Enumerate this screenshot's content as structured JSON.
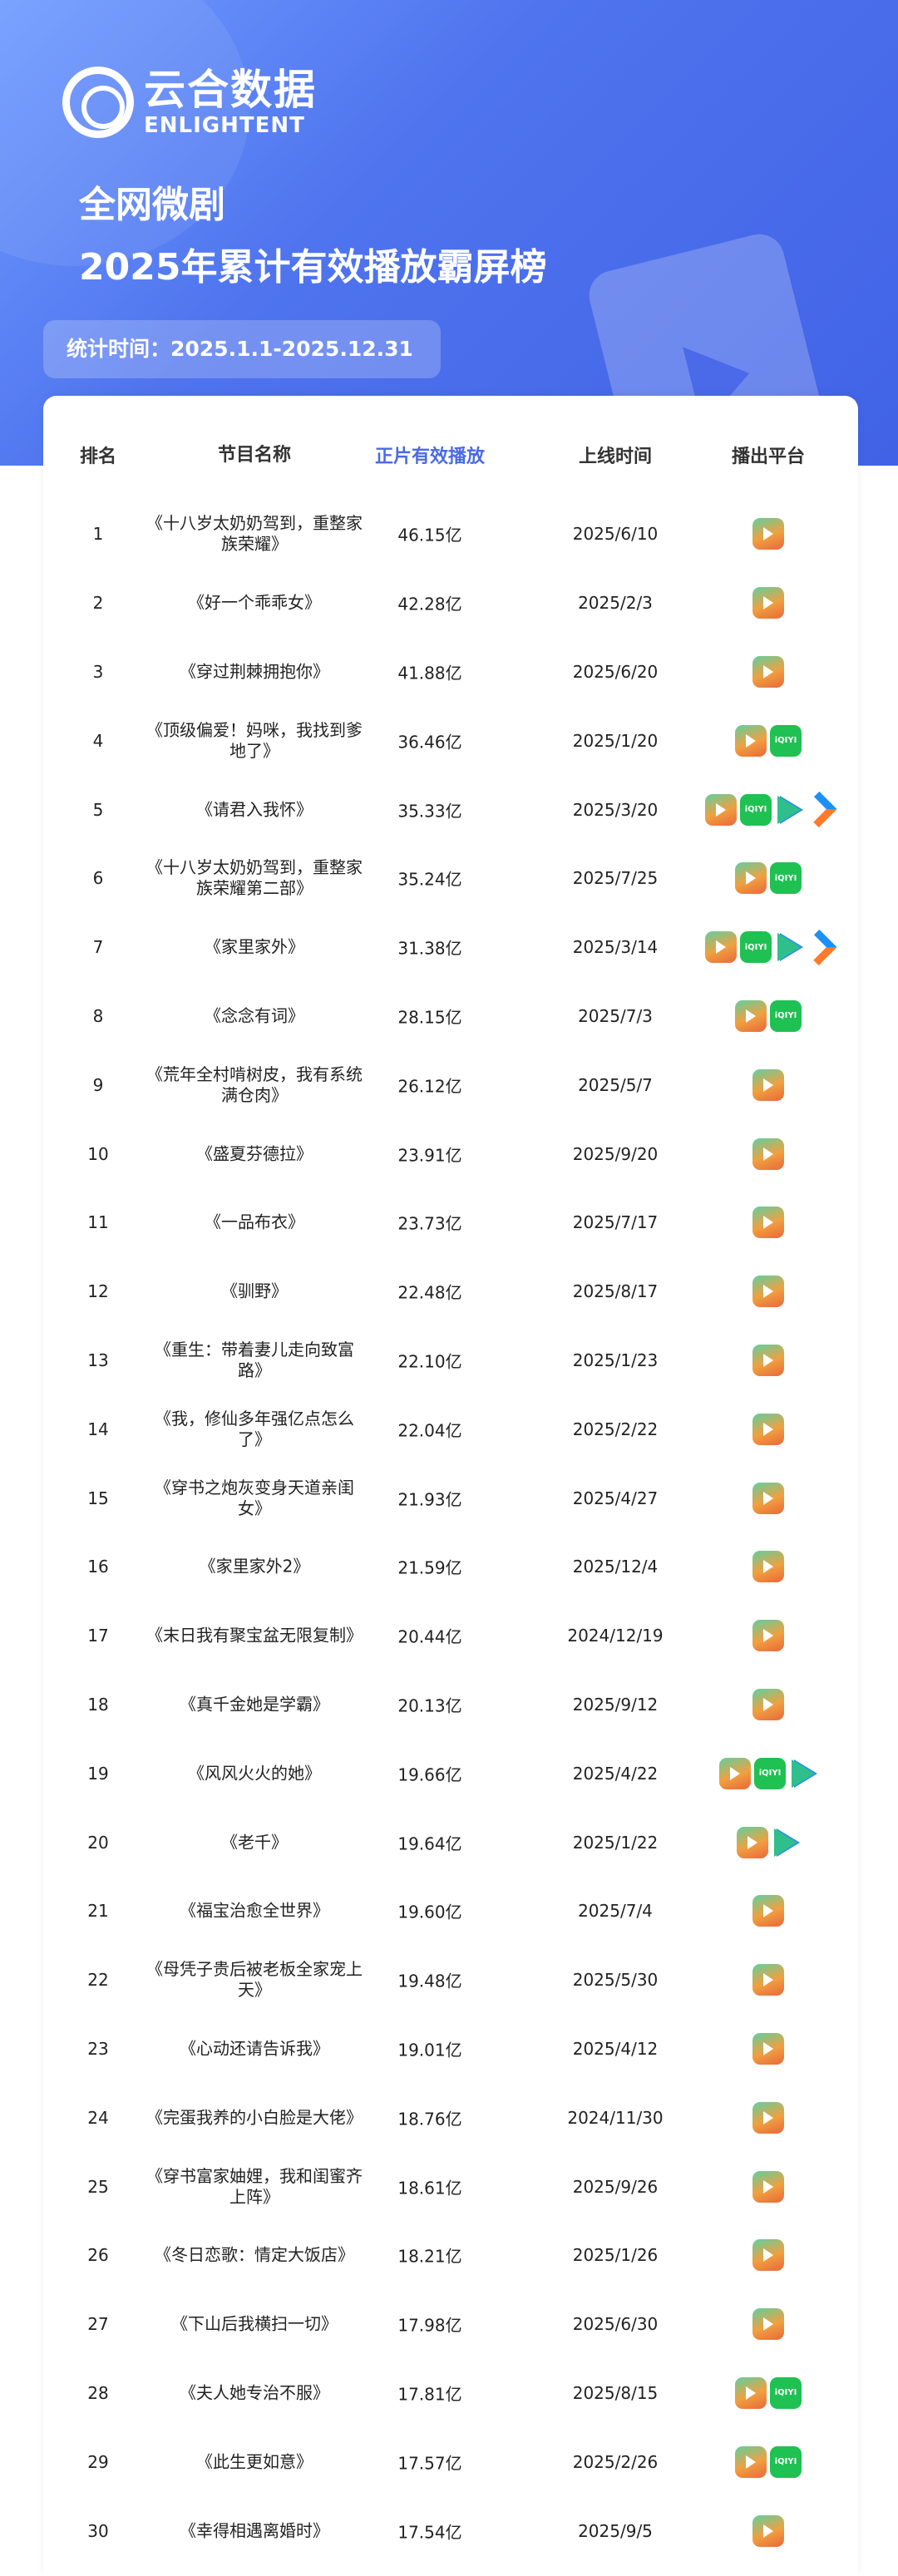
{
  "brand": {
    "name_cn": "云合数据",
    "name_en": "ENLIGHTENT"
  },
  "title": {
    "line1": "全网微剧",
    "line2": "2025年累计有效播放霸屏榜"
  },
  "period": "统计时间：2025.1.1-2025.12.31",
  "colors": {
    "accent": "#4a6ae6",
    "hero": "#4f74ee"
  },
  "table": {
    "headers": [
      "排名",
      "节目名称",
      "正片有效播放",
      "上线时间",
      "播出平台"
    ],
    "rows": [
      {
        "rank": "1",
        "name": "《十八岁太奶奶驾到，重整家族荣耀》",
        "plays": "46.15亿",
        "date": "2025/6/10",
        "platforms": [
          "hongguo"
        ]
      },
      {
        "rank": "2",
        "name": "《好一个乖乖女》",
        "plays": "42.28亿",
        "date": "2025/2/3",
        "platforms": [
          "hongguo"
        ]
      },
      {
        "rank": "3",
        "name": "《穿过荆棘拥抱你》",
        "plays": "41.88亿",
        "date": "2025/6/20",
        "platforms": [
          "hongguo"
        ]
      },
      {
        "rank": "4",
        "name": "《顶级偏爱！妈咪，我找到爹地了》",
        "plays": "36.46亿",
        "date": "2025/1/20",
        "platforms": [
          "hongguo",
          "iqiyi"
        ]
      },
      {
        "rank": "5",
        "name": "《请君入我怀》",
        "plays": "35.33亿",
        "date": "2025/3/20",
        "platforms": [
          "hongguo",
          "iqiyi",
          "tencent",
          "youku"
        ]
      },
      {
        "rank": "6",
        "name": "《十八岁太奶奶驾到，重整家族荣耀第二部》",
        "plays": "35.24亿",
        "date": "2025/7/25",
        "platforms": [
          "hongguo",
          "iqiyi"
        ]
      },
      {
        "rank": "7",
        "name": "《家里家外》",
        "plays": "31.38亿",
        "date": "2025/3/14",
        "platforms": [
          "hongguo",
          "iqiyi",
          "tencent",
          "youku"
        ]
      },
      {
        "rank": "8",
        "name": "《念念有词》",
        "plays": "28.15亿",
        "date": "2025/7/3",
        "platforms": [
          "hongguo",
          "iqiyi"
        ]
      },
      {
        "rank": "9",
        "name": "《荒年全村啃树皮，我有系统满仓肉》",
        "plays": "26.12亿",
        "date": "2025/5/7",
        "platforms": [
          "hongguo"
        ]
      },
      {
        "rank": "10",
        "name": "《盛夏芬德拉》",
        "plays": "23.91亿",
        "date": "2025/9/20",
        "platforms": [
          "hongguo"
        ]
      },
      {
        "rank": "11",
        "name": "《一品布衣》",
        "plays": "23.73亿",
        "date": "2025/7/17",
        "platforms": [
          "hongguo"
        ]
      },
      {
        "rank": "12",
        "name": "《驯野》",
        "plays": "22.48亿",
        "date": "2025/8/17",
        "platforms": [
          "hongguo"
        ]
      },
      {
        "rank": "13",
        "name": "《重生：带着妻儿走向致富路》",
        "plays": "22.10亿",
        "date": "2025/1/23",
        "platforms": [
          "hongguo"
        ]
      },
      {
        "rank": "14",
        "name": "《我，修仙多年强亿点怎么了》",
        "plays": "22.04亿",
        "date": "2025/2/22",
        "platforms": [
          "hongguo"
        ]
      },
      {
        "rank": "15",
        "name": "《穿书之炮灰变身天道亲闺女》",
        "plays": "21.93亿",
        "date": "2025/4/27",
        "platforms": [
          "hongguo"
        ]
      },
      {
        "rank": "16",
        "name": "《家里家外2》",
        "plays": "21.59亿",
        "date": "2025/12/4",
        "platforms": [
          "hongguo"
        ]
      },
      {
        "rank": "17",
        "name": "《末日我有聚宝盆无限复制》",
        "plays": "20.44亿",
        "date": "2024/12/19",
        "platforms": [
          "hongguo"
        ]
      },
      {
        "rank": "18",
        "name": "《真千金她是学霸》",
        "plays": "20.13亿",
        "date": "2025/9/12",
        "platforms": [
          "hongguo"
        ]
      },
      {
        "rank": "19",
        "name": "《风风火火的她》",
        "plays": "19.66亿",
        "date": "2025/4/22",
        "platforms": [
          "hongguo",
          "iqiyi",
          "tencent"
        ]
      },
      {
        "rank": "20",
        "name": "《老千》",
        "plays": "19.64亿",
        "date": "2025/1/22",
        "platforms": [
          "hongguo",
          "tencent"
        ]
      },
      {
        "rank": "21",
        "name": "《福宝治愈全世界》",
        "plays": "19.60亿",
        "date": "2025/7/4",
        "platforms": [
          "hongguo"
        ]
      },
      {
        "rank": "22",
        "name": "《母凭子贵后被老板全家宠上天》",
        "plays": "19.48亿",
        "date": "2025/5/30",
        "platforms": [
          "hongguo"
        ]
      },
      {
        "rank": "23",
        "name": "《心动还请告诉我》",
        "plays": "19.01亿",
        "date": "2025/4/12",
        "platforms": [
          "hongguo"
        ]
      },
      {
        "rank": "24",
        "name": "《完蛋我养的小白脸是大佬》",
        "plays": "18.76亿",
        "date": "2024/11/30",
        "platforms": [
          "hongguo"
        ]
      },
      {
        "rank": "25",
        "name": "《穿书富家妯娌，我和闺蜜齐上阵》",
        "plays": "18.61亿",
        "date": "2025/9/26",
        "platforms": [
          "hongguo"
        ]
      },
      {
        "rank": "26",
        "name": "《冬日恋歌：情定大饭店》",
        "plays": "18.21亿",
        "date": "2025/1/26",
        "platforms": [
          "hongguo"
        ]
      },
      {
        "rank": "27",
        "name": "《下山后我横扫一切》",
        "plays": "17.98亿",
        "date": "2025/6/30",
        "platforms": [
          "hongguo"
        ]
      },
      {
        "rank": "28",
        "name": "《夫人她专治不服》",
        "plays": "17.81亿",
        "date": "2025/8/15",
        "platforms": [
          "hongguo",
          "iqiyi"
        ]
      },
      {
        "rank": "29",
        "name": "《此生更如意》",
        "plays": "17.57亿",
        "date": "2025/2/26",
        "platforms": [
          "hongguo",
          "iqiyi"
        ]
      },
      {
        "rank": "30",
        "name": "《幸得相遇离婚时》",
        "plays": "17.54亿",
        "date": "2025/9/5",
        "platforms": [
          "hongguo"
        ]
      }
    ]
  },
  "iqiyi_label": "iQIYI"
}
